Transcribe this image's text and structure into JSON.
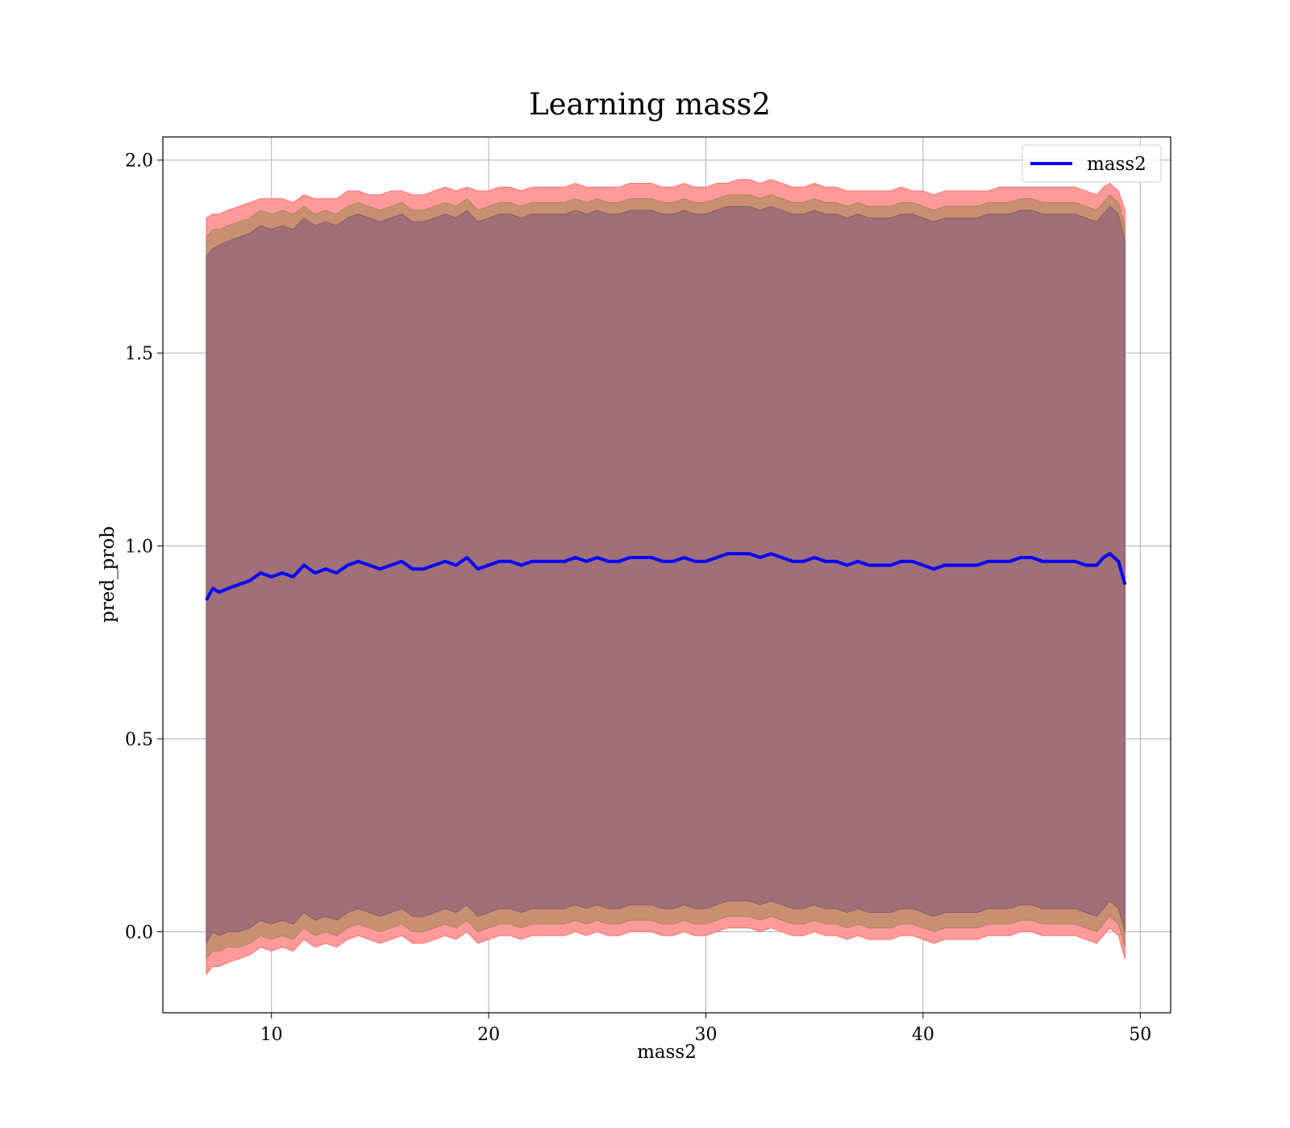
{
  "chart_data": {
    "type": "area",
    "title": "Learning mass2",
    "xlabel": "mass2",
    "ylabel": "pred_prob",
    "xlim": [
      5,
      51.4
    ],
    "ylim": [
      -0.21,
      2.06
    ],
    "xticks": [
      10,
      20,
      30,
      40,
      50
    ],
    "yticks": [
      0.0,
      0.5,
      1.0,
      1.5,
      2.0
    ],
    "xtick_labels": [
      "10",
      "20",
      "30",
      "40",
      "50"
    ],
    "ytick_labels": [
      "0.0",
      "0.5",
      "1.0",
      "1.5",
      "2.0"
    ],
    "grid": true,
    "legend": {
      "placement": "top-right",
      "entries": [
        "mass2"
      ]
    },
    "line_color": "#0000ff",
    "band_colors": {
      "outer": "#ff9a9a",
      "middle": "#c89070",
      "inner": "#a07078"
    },
    "x": [
      7.0,
      7.3,
      7.6,
      8.0,
      8.5,
      9.0,
      9.5,
      10.0,
      10.5,
      11.0,
      11.5,
      12.0,
      12.5,
      13.0,
      13.5,
      14.0,
      14.5,
      15.0,
      15.5,
      16.0,
      16.5,
      17.0,
      17.5,
      18.0,
      18.5,
      19.0,
      19.5,
      20.0,
      20.5,
      21.0,
      21.5,
      22.0,
      22.5,
      23.0,
      23.5,
      24.0,
      24.5,
      25.0,
      25.5,
      26.0,
      26.5,
      27.0,
      27.5,
      28.0,
      28.5,
      29.0,
      29.5,
      30.0,
      30.5,
      31.0,
      31.5,
      32.0,
      32.5,
      33.0,
      33.5,
      34.0,
      34.5,
      35.0,
      35.5,
      36.0,
      36.5,
      37.0,
      37.5,
      38.0,
      38.5,
      39.0,
      39.5,
      40.0,
      40.5,
      41.0,
      41.5,
      42.0,
      42.5,
      43.0,
      43.5,
      44.0,
      44.5,
      45.0,
      45.5,
      46.0,
      46.5,
      47.0,
      47.5,
      48.0,
      48.3,
      48.6,
      49.0,
      49.3
    ],
    "series": [
      {
        "name": "mass2",
        "values": [
          0.86,
          0.89,
          0.88,
          0.89,
          0.9,
          0.91,
          0.93,
          0.92,
          0.93,
          0.92,
          0.95,
          0.93,
          0.94,
          0.93,
          0.95,
          0.96,
          0.95,
          0.94,
          0.95,
          0.96,
          0.94,
          0.94,
          0.95,
          0.96,
          0.95,
          0.97,
          0.94,
          0.95,
          0.96,
          0.96,
          0.95,
          0.96,
          0.96,
          0.96,
          0.96,
          0.97,
          0.96,
          0.97,
          0.96,
          0.96,
          0.97,
          0.97,
          0.97,
          0.96,
          0.96,
          0.97,
          0.96,
          0.96,
          0.97,
          0.98,
          0.98,
          0.98,
          0.97,
          0.98,
          0.97,
          0.96,
          0.96,
          0.97,
          0.96,
          0.96,
          0.95,
          0.96,
          0.95,
          0.95,
          0.95,
          0.96,
          0.96,
          0.95,
          0.94,
          0.95,
          0.95,
          0.95,
          0.95,
          0.96,
          0.96,
          0.96,
          0.97,
          0.97,
          0.96,
          0.96,
          0.96,
          0.96,
          0.95,
          0.95,
          0.97,
          0.98,
          0.96,
          0.9
        ]
      }
    ],
    "bands": {
      "outer_upper": [
        1.85,
        1.86,
        1.86,
        1.87,
        1.88,
        1.89,
        1.9,
        1.9,
        1.9,
        1.89,
        1.91,
        1.9,
        1.9,
        1.9,
        1.92,
        1.92,
        1.91,
        1.91,
        1.92,
        1.92,
        1.91,
        1.91,
        1.92,
        1.93,
        1.92,
        1.93,
        1.92,
        1.92,
        1.93,
        1.93,
        1.92,
        1.93,
        1.93,
        1.93,
        1.93,
        1.94,
        1.93,
        1.93,
        1.93,
        1.93,
        1.94,
        1.94,
        1.94,
        1.93,
        1.93,
        1.94,
        1.93,
        1.93,
        1.94,
        1.94,
        1.95,
        1.95,
        1.94,
        1.95,
        1.94,
        1.93,
        1.93,
        1.94,
        1.93,
        1.93,
        1.92,
        1.92,
        1.92,
        1.92,
        1.92,
        1.93,
        1.92,
        1.92,
        1.91,
        1.92,
        1.92,
        1.92,
        1.92,
        1.92,
        1.93,
        1.93,
        1.93,
        1.93,
        1.93,
        1.93,
        1.93,
        1.93,
        1.92,
        1.91,
        1.93,
        1.94,
        1.92,
        1.87
      ],
      "middle_upper": [
        1.8,
        1.82,
        1.82,
        1.83,
        1.84,
        1.85,
        1.87,
        1.86,
        1.87,
        1.86,
        1.88,
        1.86,
        1.87,
        1.86,
        1.88,
        1.89,
        1.88,
        1.87,
        1.88,
        1.89,
        1.87,
        1.87,
        1.88,
        1.89,
        1.88,
        1.9,
        1.87,
        1.88,
        1.89,
        1.89,
        1.88,
        1.89,
        1.89,
        1.89,
        1.89,
        1.9,
        1.89,
        1.9,
        1.89,
        1.89,
        1.9,
        1.9,
        1.9,
        1.89,
        1.89,
        1.9,
        1.89,
        1.89,
        1.9,
        1.91,
        1.91,
        1.91,
        1.9,
        1.91,
        1.9,
        1.89,
        1.89,
        1.9,
        1.89,
        1.89,
        1.88,
        1.89,
        1.88,
        1.88,
        1.88,
        1.89,
        1.89,
        1.88,
        1.87,
        1.88,
        1.88,
        1.88,
        1.88,
        1.89,
        1.89,
        1.89,
        1.9,
        1.9,
        1.89,
        1.89,
        1.89,
        1.89,
        1.88,
        1.87,
        1.89,
        1.91,
        1.89,
        1.83
      ],
      "inner_upper": [
        1.75,
        1.77,
        1.78,
        1.79,
        1.8,
        1.81,
        1.83,
        1.82,
        1.83,
        1.82,
        1.85,
        1.83,
        1.84,
        1.83,
        1.85,
        1.86,
        1.85,
        1.84,
        1.85,
        1.86,
        1.84,
        1.84,
        1.85,
        1.86,
        1.85,
        1.87,
        1.84,
        1.85,
        1.86,
        1.86,
        1.85,
        1.86,
        1.86,
        1.86,
        1.86,
        1.87,
        1.86,
        1.87,
        1.86,
        1.86,
        1.87,
        1.87,
        1.87,
        1.86,
        1.86,
        1.87,
        1.86,
        1.86,
        1.87,
        1.88,
        1.88,
        1.88,
        1.87,
        1.88,
        1.87,
        1.86,
        1.86,
        1.87,
        1.86,
        1.86,
        1.85,
        1.86,
        1.85,
        1.85,
        1.85,
        1.86,
        1.86,
        1.85,
        1.84,
        1.85,
        1.85,
        1.85,
        1.85,
        1.86,
        1.86,
        1.86,
        1.87,
        1.87,
        1.86,
        1.86,
        1.86,
        1.86,
        1.85,
        1.84,
        1.86,
        1.88,
        1.86,
        1.79
      ],
      "inner_lower": [
        -0.03,
        0.0,
        -0.01,
        0.0,
        0.0,
        0.01,
        0.03,
        0.02,
        0.03,
        0.02,
        0.05,
        0.03,
        0.04,
        0.03,
        0.05,
        0.06,
        0.05,
        0.04,
        0.05,
        0.06,
        0.04,
        0.04,
        0.05,
        0.06,
        0.05,
        0.07,
        0.04,
        0.05,
        0.06,
        0.06,
        0.05,
        0.06,
        0.06,
        0.06,
        0.06,
        0.07,
        0.06,
        0.07,
        0.06,
        0.06,
        0.07,
        0.07,
        0.07,
        0.06,
        0.06,
        0.07,
        0.06,
        0.06,
        0.07,
        0.08,
        0.08,
        0.08,
        0.07,
        0.08,
        0.07,
        0.06,
        0.06,
        0.07,
        0.06,
        0.06,
        0.05,
        0.06,
        0.05,
        0.05,
        0.05,
        0.06,
        0.06,
        0.05,
        0.04,
        0.05,
        0.05,
        0.05,
        0.05,
        0.06,
        0.06,
        0.06,
        0.07,
        0.07,
        0.06,
        0.06,
        0.06,
        0.06,
        0.05,
        0.04,
        0.06,
        0.08,
        0.06,
        0.0
      ],
      "middle_lower": [
        -0.07,
        -0.05,
        -0.05,
        -0.04,
        -0.04,
        -0.03,
        -0.01,
        -0.02,
        -0.01,
        -0.02,
        0.01,
        -0.01,
        0.0,
        -0.01,
        0.01,
        0.02,
        0.01,
        0.0,
        0.01,
        0.02,
        0.0,
        0.0,
        0.01,
        0.02,
        0.01,
        0.03,
        0.0,
        0.01,
        0.02,
        0.02,
        0.01,
        0.02,
        0.02,
        0.02,
        0.02,
        0.03,
        0.02,
        0.03,
        0.02,
        0.02,
        0.03,
        0.03,
        0.03,
        0.02,
        0.02,
        0.03,
        0.02,
        0.02,
        0.03,
        0.04,
        0.04,
        0.04,
        0.03,
        0.04,
        0.03,
        0.02,
        0.02,
        0.03,
        0.02,
        0.02,
        0.01,
        0.02,
        0.01,
        0.01,
        0.01,
        0.02,
        0.02,
        0.01,
        0.0,
        0.01,
        0.01,
        0.01,
        0.01,
        0.02,
        0.02,
        0.02,
        0.03,
        0.03,
        0.02,
        0.02,
        0.02,
        0.02,
        0.01,
        0.0,
        0.02,
        0.04,
        0.02,
        -0.04
      ],
      "outer_lower": [
        -0.11,
        -0.09,
        -0.09,
        -0.08,
        -0.07,
        -0.06,
        -0.04,
        -0.05,
        -0.04,
        -0.05,
        -0.02,
        -0.04,
        -0.03,
        -0.04,
        -0.02,
        -0.01,
        -0.02,
        -0.03,
        -0.02,
        -0.01,
        -0.03,
        -0.03,
        -0.02,
        -0.01,
        -0.02,
        0.0,
        -0.03,
        -0.02,
        -0.01,
        -0.01,
        -0.02,
        -0.01,
        -0.01,
        -0.01,
        -0.01,
        0.0,
        -0.01,
        0.0,
        -0.01,
        -0.01,
        0.0,
        0.0,
        0.0,
        -0.01,
        -0.01,
        0.0,
        -0.01,
        -0.01,
        0.0,
        0.01,
        0.01,
        0.01,
        0.0,
        0.01,
        0.0,
        -0.01,
        -0.01,
        0.0,
        -0.01,
        -0.01,
        -0.02,
        -0.01,
        -0.02,
        -0.02,
        -0.02,
        -0.01,
        -0.01,
        -0.02,
        -0.03,
        -0.02,
        -0.02,
        -0.02,
        -0.02,
        -0.01,
        -0.01,
        -0.01,
        0.0,
        0.0,
        -0.01,
        -0.01,
        -0.01,
        -0.01,
        -0.02,
        -0.03,
        -0.01,
        0.01,
        -0.01,
        -0.07
      ]
    }
  }
}
